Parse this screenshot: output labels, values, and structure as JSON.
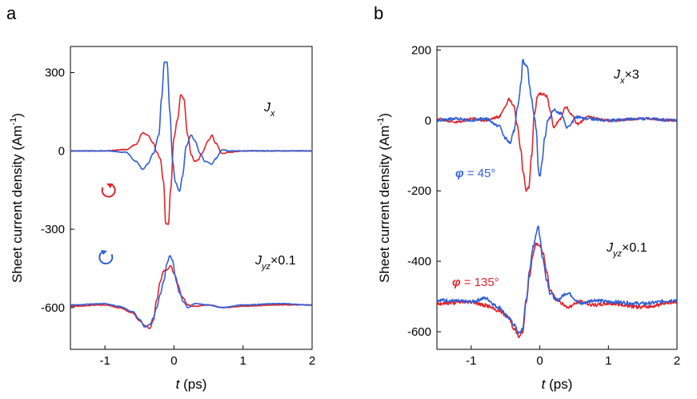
{
  "colors": {
    "red": "#e2242b",
    "blue": "#2f5fd6",
    "axis": "#000000"
  },
  "chart_data": [
    {
      "panel": "a",
      "type": "line",
      "xlabel_italic": "t",
      "xlabel_rest": " (ps)",
      "ylabel": "Sheet current density (Am",
      "ylabel_sup": "-1",
      "ylabel_close": ")",
      "xlim": [
        -1.5,
        2
      ],
      "ylim": [
        -760,
        400
      ],
      "xticks": [
        -1,
        0,
        1,
        2
      ],
      "xtick_labels": [
        "-1",
        "0",
        "1",
        "2"
      ],
      "yticks": [
        300,
        0,
        -300,
        -600
      ],
      "ytick_labels": [
        "300",
        "0",
        "-300",
        "-600"
      ],
      "annotations": {
        "jx_main": "J",
        "jx_sub": "x",
        "jyz_main": "J",
        "jyz_sub": "yz",
        "jyz_factor": "×0.1",
        "red_symbol": "red-circular-arrow-icon",
        "blue_symbol": "blue-circular-arrow-icon"
      },
      "series": [
        {
          "name": "Jx red",
          "color": "red",
          "x": [
            -1.5,
            -1.0,
            -0.7,
            -0.55,
            -0.45,
            -0.38,
            -0.3,
            -0.25,
            -0.2,
            -0.15,
            -0.12,
            -0.08,
            -0.05,
            0.0,
            0.05,
            0.1,
            0.14,
            0.2,
            0.25,
            0.3,
            0.35,
            0.4,
            0.5,
            0.55,
            0.6,
            0.7,
            0.8,
            1.0,
            1.5,
            2.0
          ],
          "y": [
            0,
            0,
            5,
            25,
            70,
            60,
            30,
            -5,
            -30,
            -120,
            -280,
            -280,
            -150,
            50,
            120,
            215,
            200,
            60,
            -15,
            -40,
            -35,
            -10,
            40,
            60,
            30,
            -10,
            -5,
            0,
            0,
            0
          ]
        },
        {
          "name": "Jx blue",
          "color": "blue",
          "x": [
            -1.5,
            -1.0,
            -0.7,
            -0.55,
            -0.45,
            -0.38,
            -0.3,
            -0.22,
            -0.18,
            -0.14,
            -0.1,
            -0.06,
            -0.02,
            0.02,
            0.08,
            0.12,
            0.18,
            0.25,
            0.3,
            0.38,
            0.45,
            0.55,
            0.6,
            0.7,
            0.8,
            1.0,
            1.5,
            2.0
          ],
          "y": [
            0,
            0,
            -5,
            -40,
            -70,
            -50,
            -10,
            60,
            200,
            340,
            340,
            150,
            -40,
            -120,
            -155,
            -100,
            20,
            60,
            40,
            -10,
            -40,
            -50,
            -30,
            5,
            0,
            0,
            0,
            0
          ]
        },
        {
          "name": "Jyz red",
          "color": "red",
          "x": [
            -1.5,
            -1.0,
            -0.8,
            -0.6,
            -0.5,
            -0.42,
            -0.35,
            -0.3,
            -0.25,
            -0.2,
            -0.15,
            -0.1,
            -0.05,
            0.0,
            0.05,
            0.12,
            0.2,
            0.3,
            0.5,
            0.7,
            1.0,
            1.5,
            2.0
          ],
          "y": [
            -595,
            -590,
            -600,
            -620,
            -650,
            -670,
            -680,
            -650,
            -570,
            -500,
            -460,
            -455,
            -440,
            -470,
            -510,
            -560,
            -590,
            -595,
            -590,
            -600,
            -595,
            -590,
            -590
          ]
        },
        {
          "name": "Jyz blue",
          "color": "blue",
          "x": [
            -1.5,
            -1.0,
            -0.8,
            -0.6,
            -0.5,
            -0.42,
            -0.35,
            -0.3,
            -0.25,
            -0.2,
            -0.15,
            -0.1,
            -0.06,
            -0.02,
            0.02,
            0.08,
            0.14,
            0.2,
            0.3,
            0.5,
            0.7,
            1.0,
            1.5,
            2.0
          ],
          "y": [
            -590,
            -585,
            -595,
            -615,
            -645,
            -675,
            -665,
            -640,
            -600,
            -550,
            -500,
            -430,
            -400,
            -420,
            -480,
            -545,
            -580,
            -600,
            -585,
            -590,
            -600,
            -590,
            -585,
            -590
          ]
        }
      ]
    },
    {
      "panel": "b",
      "type": "line",
      "xlabel_italic": "t",
      "xlabel_rest": " (ps)",
      "ylabel": "Sheet current density (Am",
      "ylabel_sup": "-1",
      "ylabel_close": ")",
      "xlim": [
        -1.5,
        2
      ],
      "ylim": [
        -650,
        210
      ],
      "xticks": [
        -1,
        0,
        1,
        2
      ],
      "xtick_labels": [
        "-1",
        "0",
        "1",
        "2"
      ],
      "yticks": [
        200,
        0,
        -200,
        -400,
        -600
      ],
      "ytick_labels": [
        "200",
        "0",
        "-200",
        "-400",
        "-600"
      ],
      "annotations": {
        "jx_main": "J",
        "jx_sub": "x",
        "jx_factor": "×3",
        "jyz_main": "J",
        "jyz_sub": "yz",
        "jyz_factor": "×0.1",
        "phi_blue_symbol": "φ",
        "phi_blue_value": " = 45°",
        "phi_red_symbol": "φ",
        "phi_red_value": " = 135°"
      },
      "series": [
        {
          "name": "Jx×3 red",
          "color": "red",
          "x": [
            -1.5,
            -1.2,
            -1.0,
            -0.8,
            -0.6,
            -0.5,
            -0.45,
            -0.38,
            -0.33,
            -0.28,
            -0.24,
            -0.2,
            -0.16,
            -0.12,
            -0.08,
            -0.03,
            0.0,
            0.05,
            0.1,
            0.15,
            0.2,
            0.3,
            0.38,
            0.45,
            0.55,
            0.7,
            1.0,
            1.5,
            2.0
          ],
          "y": [
            5,
            -5,
            5,
            0,
            10,
            40,
            60,
            40,
            -10,
            -80,
            -150,
            -200,
            -190,
            -100,
            20,
            70,
            75,
            75,
            70,
            30,
            -20,
            5,
            40,
            20,
            -10,
            10,
            0,
            5,
            0
          ],
          "jitter": 7
        },
        {
          "name": "Jx×3 blue",
          "color": "blue",
          "x": [
            -1.5,
            -1.2,
            -1.0,
            -0.8,
            -0.6,
            -0.5,
            -0.43,
            -0.38,
            -0.32,
            -0.27,
            -0.25,
            -0.22,
            -0.18,
            -0.15,
            -0.12,
            -0.08,
            -0.05,
            -0.02,
            0.0,
            0.03,
            0.07,
            0.12,
            0.2,
            0.3,
            0.4,
            0.55,
            0.7,
            1.0,
            1.5,
            2.0
          ],
          "y": [
            0,
            5,
            0,
            5,
            -15,
            -50,
            -65,
            -30,
            40,
            110,
            175,
            160,
            155,
            100,
            60,
            10,
            -30,
            -140,
            -160,
            -120,
            -50,
            0,
            30,
            20,
            -20,
            10,
            5,
            0,
            5,
            0
          ],
          "jitter": 8
        },
        {
          "name": "Jyz red",
          "color": "red",
          "x": [
            -1.5,
            -1.0,
            -0.8,
            -0.6,
            -0.45,
            -0.38,
            -0.3,
            -0.25,
            -0.2,
            -0.15,
            -0.1,
            -0.05,
            0.0,
            0.05,
            0.1,
            0.15,
            0.25,
            0.4,
            0.6,
            0.8,
            1.0,
            1.5,
            2.0
          ],
          "y": [
            -520,
            -515,
            -525,
            -540,
            -560,
            -590,
            -615,
            -600,
            -520,
            -440,
            -380,
            -350,
            -355,
            -380,
            -430,
            -480,
            -510,
            -530,
            -515,
            -525,
            -520,
            -530,
            -515
          ],
          "jitter": 10
        },
        {
          "name": "Jyz blue",
          "color": "blue",
          "x": [
            -1.5,
            -1.0,
            -0.8,
            -0.6,
            -0.45,
            -0.38,
            -0.3,
            -0.25,
            -0.2,
            -0.15,
            -0.1,
            -0.05,
            -0.02,
            0.0,
            0.04,
            0.1,
            0.15,
            0.25,
            0.4,
            0.6,
            0.8,
            1.0,
            1.5,
            2.0
          ],
          "y": [
            -510,
            -515,
            -505,
            -530,
            -560,
            -580,
            -605,
            -590,
            -510,
            -430,
            -360,
            -320,
            -300,
            -330,
            -390,
            -450,
            -490,
            -510,
            -490,
            -520,
            -510,
            -515,
            -520,
            -510
          ],
          "jitter": 10
        }
      ]
    }
  ]
}
